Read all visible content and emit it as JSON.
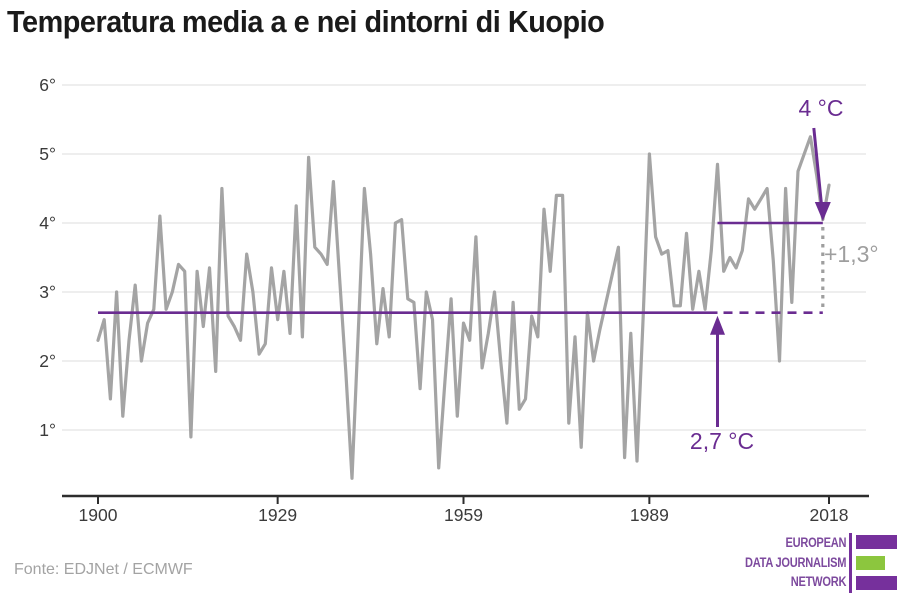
{
  "title": "Temperatura media a e nei dintorni di Kuopio",
  "source": "Fonte: EDJNet / ECMWF",
  "annotations": {
    "recent_label": "4 °C",
    "baseline_label": "2,7 °C",
    "delta_label": "+1,3°"
  },
  "logo": {
    "line1": "EUROPEAN",
    "line2": "DATA JOURNALISM",
    "line3": "NETWORK",
    "purple": "#76309c",
    "green": "#8cc63e"
  },
  "colors": {
    "data_line": "#a4a4a4",
    "accent_purple": "#6a2c91",
    "grid": "#e3e3e3",
    "axis": "#2d2d2d",
    "tick_text": "#3b3b3b",
    "muted_gray": "#9e9e9e"
  },
  "chart_data": {
    "type": "line",
    "title": "Temperatura media a e nei dintorni di Kuopio",
    "xlabel": "",
    "ylabel": "°C",
    "x_start": 1900,
    "x_end": 2018,
    "ylim": [
      0,
      6.2
    ],
    "grid": true,
    "values": [
      2.3,
      2.6,
      1.45,
      3.0,
      1.2,
      2.3,
      3.1,
      2.0,
      2.55,
      2.75,
      4.1,
      2.75,
      3.0,
      3.4,
      3.3,
      0.9,
      3.3,
      2.5,
      3.35,
      1.85,
      4.5,
      2.65,
      2.5,
      2.3,
      3.55,
      3.0,
      2.1,
      2.25,
      3.35,
      2.6,
      3.3,
      2.4,
      4.25,
      2.35,
      4.95,
      3.65,
      3.55,
      3.4,
      4.6,
      3.2,
      1.85,
      0.3,
      2.4,
      4.5,
      3.55,
      2.25,
      3.05,
      2.35,
      4.0,
      4.05,
      2.9,
      2.85,
      1.6,
      3.0,
      2.6,
      0.45,
      1.7,
      2.9,
      1.2,
      2.55,
      2.3,
      3.8,
      1.9,
      2.4,
      3.0,
      2.0,
      1.1,
      2.85,
      1.3,
      1.45,
      2.65,
      2.35,
      4.2,
      3.3,
      4.4,
      4.4,
      1.1,
      2.35,
      0.75,
      2.7,
      2.0,
      2.45,
      2.85,
      3.25,
      3.65,
      0.6,
      2.4,
      0.55,
      2.65,
      5.0,
      3.8,
      3.55,
      3.6,
      2.8,
      2.8,
      3.85,
      2.75,
      3.3,
      2.75,
      3.6,
      4.85,
      3.3,
      3.5,
      3.35,
      3.6,
      4.35,
      4.2,
      4.35,
      4.5,
      3.45,
      2.0,
      4.5,
      2.85,
      4.75,
      5.0,
      5.25,
      4.7,
      4.05,
      4.55
    ],
    "x_ticks": {
      "years": [
        1900,
        1929,
        1959,
        1989,
        2018
      ],
      "labels": [
        "1900",
        "1929",
        "1959",
        "1989",
        "2018"
      ]
    },
    "y_ticks": {
      "values": [
        1,
        2,
        3,
        4,
        5,
        6
      ],
      "labels": [
        "1°",
        "2°",
        "3°",
        "4°",
        "5°",
        "6°"
      ]
    },
    "baseline": {
      "value": 2.7,
      "label": "2,7 °C",
      "solid_from": 1900,
      "solid_to": 2000,
      "dashed_to": 2017
    },
    "recent_mean": {
      "value": 4.0,
      "label": "4 °C",
      "from": 2000,
      "to": 2017
    },
    "delta": {
      "label": "+1,3°",
      "at_year": 2017
    }
  }
}
